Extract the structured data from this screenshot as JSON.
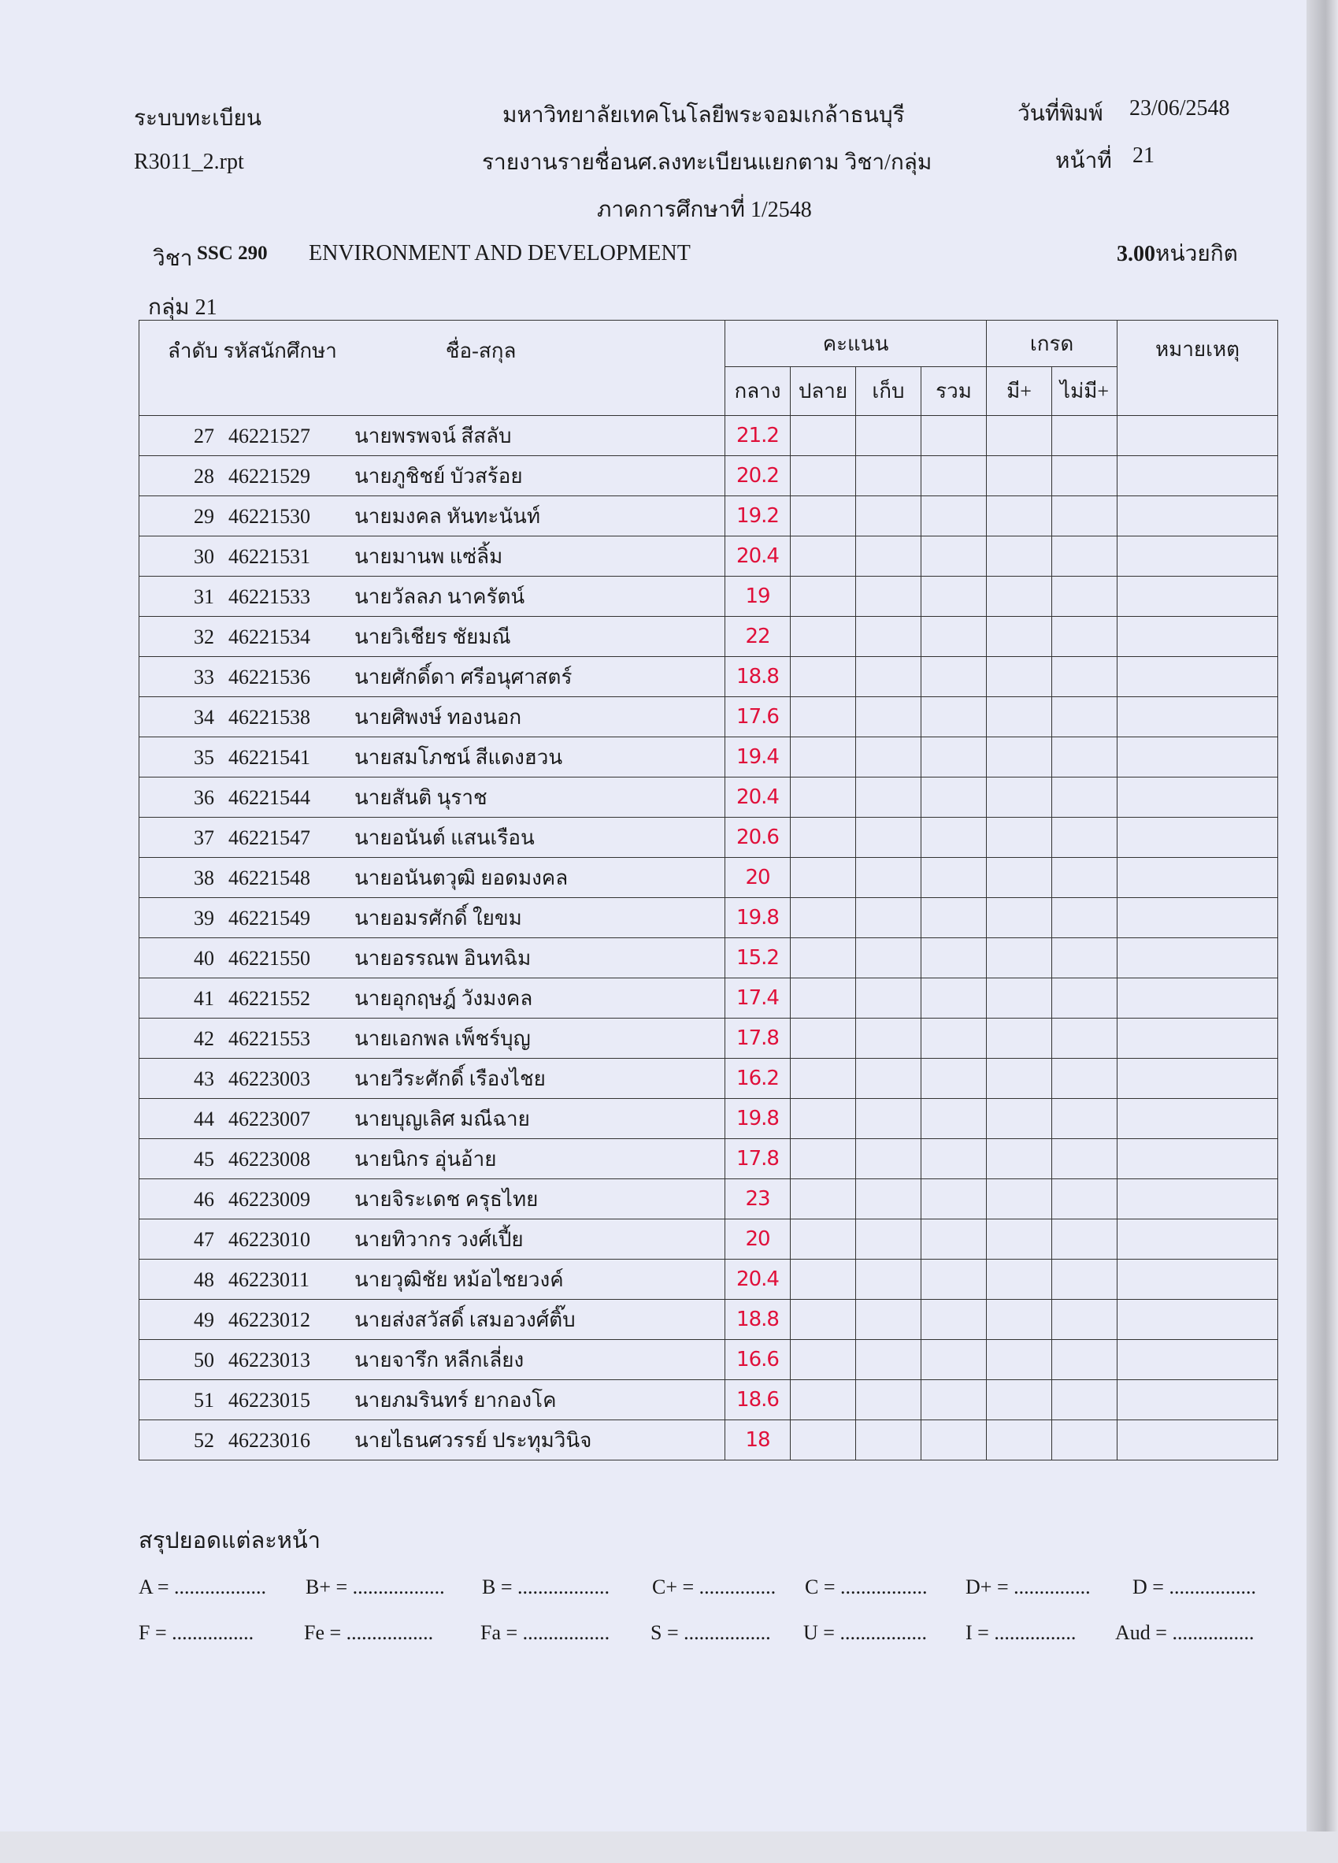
{
  "header": {
    "system": "ระบบทะเบียน",
    "report_file": "R3011_2.rpt",
    "university": "มหาวิทยาลัยเทคโนโลยีพระจอมเกล้าธนบุรี",
    "report_title": "รายงานรายชื่อนศ.ลงทะเบียนแยกตาม วิชา/กลุ่ม",
    "semester": "ภาคการศึกษาที่ 1/2548",
    "print_date_label": "วันที่พิมพ์",
    "print_date": "23/06/2548",
    "page_label": "หน้าที่",
    "page": "21"
  },
  "course": {
    "label": "วิชา",
    "code": "SSC 290",
    "name": "ENVIRONMENT AND DEVELOPMENT",
    "credits": "3.00",
    "credits_unit": "หน่วยกิต",
    "group_label": "กลุ่ม",
    "group": "21"
  },
  "table": {
    "headers": {
      "seq_id": "ลำดับ รหัสนักศึกษา",
      "name": "ชื่อ-สกุล",
      "score": "คะแนน",
      "grade": "เกรด",
      "remark": "หมายเหตุ",
      "midterm": "กลาง",
      "final": "ปลาย",
      "collected": "เก็บ",
      "total": "รวม",
      "has_plus": "มี+",
      "no_plus": "ไม่มี+"
    },
    "rows": [
      {
        "no": "27",
        "id": "46221527",
        "name": "นายพรพจน์ สีสลับ",
        "midterm": "21.2"
      },
      {
        "no": "28",
        "id": "46221529",
        "name": "นายภูชิชย์ บัวสร้อย",
        "midterm": "20.2"
      },
      {
        "no": "29",
        "id": "46221530",
        "name": "นายมงคล หันทะนันท์",
        "midterm": "19.2"
      },
      {
        "no": "30",
        "id": "46221531",
        "name": "นายมานพ แซ่ลิ้ม",
        "midterm": "20.4"
      },
      {
        "no": "31",
        "id": "46221533",
        "name": "นายวัลลภ นาครัตน์",
        "midterm": "19"
      },
      {
        "no": "32",
        "id": "46221534",
        "name": "นายวิเชียร ชัยมณี",
        "midterm": "22"
      },
      {
        "no": "33",
        "id": "46221536",
        "name": "นายศักดิ์ดา ศรีอนุศาสตร์",
        "midterm": "18.8"
      },
      {
        "no": "34",
        "id": "46221538",
        "name": "นายศิพงษ์ ทองนอก",
        "midterm": "17.6"
      },
      {
        "no": "35",
        "id": "46221541",
        "name": "นายสมโภชน์ สีแดงฮวน",
        "midterm": "19.4"
      },
      {
        "no": "36",
        "id": "46221544",
        "name": "นายสันติ นุราช",
        "midterm": "20.4"
      },
      {
        "no": "37",
        "id": "46221547",
        "name": "นายอนันต์ แสนเรือน",
        "midterm": "20.6"
      },
      {
        "no": "38",
        "id": "46221548",
        "name": "นายอนันตวุฒิ ยอดมงคล",
        "midterm": "20"
      },
      {
        "no": "39",
        "id": "46221549",
        "name": "นายอมรศักดิ์ ใยขม",
        "midterm": "19.8"
      },
      {
        "no": "40",
        "id": "46221550",
        "name": "นายอรรณพ อินทฉิม",
        "midterm": "15.2"
      },
      {
        "no": "41",
        "id": "46221552",
        "name": "นายอุกฤษฎ์ วังมงคล",
        "midterm": "17.4"
      },
      {
        "no": "42",
        "id": "46221553",
        "name": "นายเอกพล เพ็ชร์บุญ",
        "midterm": "17.8"
      },
      {
        "no": "43",
        "id": "46223003",
        "name": "นายวีระศักดิ์ เรืองไชย",
        "midterm": "16.2"
      },
      {
        "no": "44",
        "id": "46223007",
        "name": "นายบุญเลิศ มณีฉาย",
        "midterm": "19.8"
      },
      {
        "no": "45",
        "id": "46223008",
        "name": "นายนิกร อุ่นอ้าย",
        "midterm": "17.8"
      },
      {
        "no": "46",
        "id": "46223009",
        "name": "นายจิระเดช ครุธไทย",
        "midterm": "23"
      },
      {
        "no": "47",
        "id": "46223010",
        "name": "นายทิวากร วงศ์เปี้ย",
        "midterm": "20"
      },
      {
        "no": "48",
        "id": "46223011",
        "name": "นายวุฒิชัย หม้อไชยวงค์",
        "midterm": "20.4"
      },
      {
        "no": "49",
        "id": "46223012",
        "name": "นายส่งสวัสดิ์ เสมอวงศ์ติ๊บ",
        "midterm": "18.8"
      },
      {
        "no": "50",
        "id": "46223013",
        "name": "นายจารึก หลีกเลี่ยง",
        "midterm": "16.6"
      },
      {
        "no": "51",
        "id": "46223015",
        "name": "นายภมรินทร์ ยากองโค",
        "midterm": "18.6"
      },
      {
        "no": "52",
        "id": "46223016",
        "name": "นายไธนศวรรย์ ประทุมวินิจ",
        "midterm": "18"
      }
    ]
  },
  "summary": {
    "title": "สรุปยอดแต่ละหน้า",
    "line1": [
      "A = ..................",
      "B+ = ..................",
      "B = ..................",
      "C+ = ...............",
      "C = .................",
      "D+ = ...............",
      "D = ................."
    ],
    "line2": [
      "F = ................",
      "Fe = .................",
      "Fa = .................",
      "S = .................",
      "U = .................",
      "I = ................",
      "Aud = ................"
    ]
  },
  "colors": {
    "paper": "#e9ebf7",
    "handwriting": "#e0103a"
  }
}
